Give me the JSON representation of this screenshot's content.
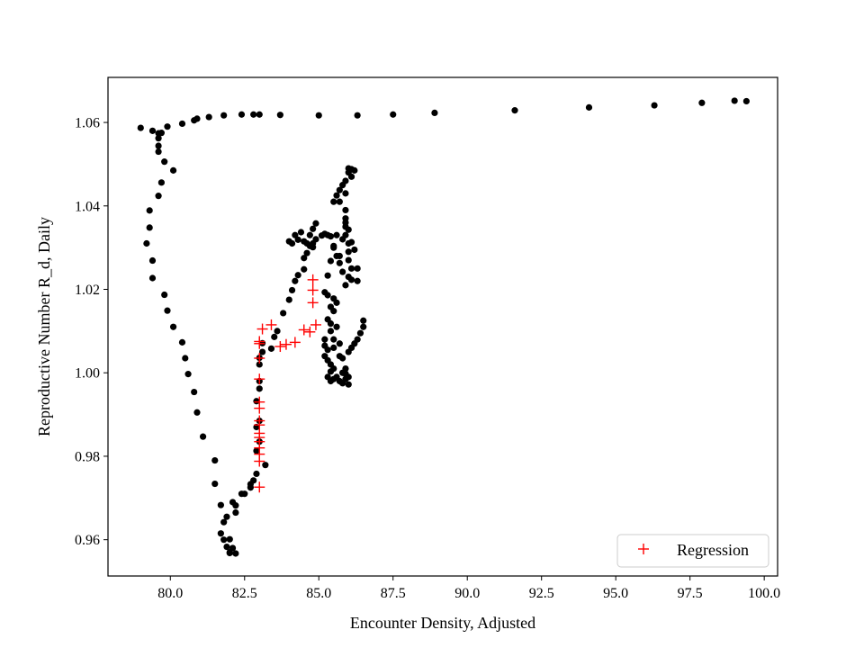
{
  "chart_data": {
    "type": "scatter",
    "title": "",
    "xlabel": "Encounter Density, Adjusted",
    "ylabel": "Reproductive Number R_d, Daily",
    "xlim": [
      77.9,
      100.45
    ],
    "ylim": [
      0.9513,
      1.0708
    ],
    "xticks": [
      "80.0",
      "82.5",
      "85.0",
      "87.5",
      "90.0",
      "92.5",
      "95.0",
      "97.5",
      "100.0"
    ],
    "xtick_values": [
      80.0,
      82.5,
      85.0,
      87.5,
      90.0,
      92.5,
      95.0,
      97.5,
      100.0
    ],
    "yticks": [
      "0.96",
      "0.98",
      "1.00",
      "1.02",
      "1.04",
      "1.06"
    ],
    "ytick_values": [
      0.96,
      0.98,
      1.0,
      1.02,
      1.04,
      1.06
    ],
    "grid": false,
    "legend": {
      "position": "lower-right",
      "entries": [
        "Regression"
      ]
    },
    "colors": {
      "observed": "#000000",
      "regression": "#ff0000",
      "axes": "#000000"
    },
    "series": [
      {
        "marker": "dot",
        "color": "#000000",
        "points": [
          [
            99.4,
            1.0651
          ],
          [
            99.0,
            1.0652
          ],
          [
            97.9,
            1.0647
          ],
          [
            96.3,
            1.0641
          ],
          [
            94.1,
            1.0636
          ],
          [
            91.6,
            1.0629
          ],
          [
            88.9,
            1.0623
          ],
          [
            87.5,
            1.0619
          ],
          [
            86.3,
            1.0617
          ],
          [
            85.0,
            1.0617
          ],
          [
            83.7,
            1.0618
          ],
          [
            83.0,
            1.0619
          ],
          [
            82.8,
            1.0619
          ],
          [
            82.4,
            1.0619
          ],
          [
            81.8,
            1.0617
          ],
          [
            81.3,
            1.0613
          ],
          [
            80.9,
            1.0609
          ],
          [
            80.8,
            1.0605
          ],
          [
            80.4,
            1.0597
          ],
          [
            79.0,
            1.0587
          ],
          [
            79.4,
            1.058
          ],
          [
            79.6,
            1.0574
          ],
          [
            79.7,
            1.0575
          ],
          [
            79.9,
            1.059
          ],
          [
            79.6,
            1.0562
          ],
          [
            79.6,
            1.0544
          ],
          [
            79.6,
            1.053
          ],
          [
            79.8,
            1.0506
          ],
          [
            80.1,
            1.0485
          ],
          [
            79.7,
            1.0456
          ],
          [
            79.6,
            1.0424
          ],
          [
            79.3,
            1.0389
          ],
          [
            79.3,
            1.0348
          ],
          [
            79.2,
            1.031
          ],
          [
            79.4,
            1.0269
          ],
          [
            79.4,
            1.0227
          ],
          [
            79.8,
            1.0187
          ],
          [
            79.9,
            1.0149
          ],
          [
            80.1,
            1.011
          ],
          [
            80.4,
            1.0073
          ],
          [
            80.5,
            1.0035
          ],
          [
            80.6,
            0.9997
          ],
          [
            80.8,
            0.9954
          ],
          [
            80.9,
            0.9905
          ],
          [
            81.1,
            0.9847
          ],
          [
            81.5,
            0.979
          ],
          [
            81.5,
            0.9734
          ],
          [
            81.7,
            0.9683
          ],
          [
            81.8,
            0.9642
          ],
          [
            81.9,
            0.9655
          ],
          [
            81.7,
            0.9615
          ],
          [
            81.8,
            0.96
          ],
          [
            81.9,
            0.9583
          ],
          [
            82.0,
            0.9601
          ],
          [
            82.0,
            0.957
          ],
          [
            82.1,
            0.958
          ],
          [
            82.2,
            0.9567
          ],
          [
            82.0,
            0.9568
          ],
          [
            82.2,
            0.9665
          ],
          [
            82.2,
            0.9682
          ],
          [
            82.1,
            0.969
          ],
          [
            82.4,
            0.971
          ],
          [
            82.5,
            0.971
          ],
          [
            82.7,
            0.9725
          ],
          [
            82.7,
            0.9733
          ],
          [
            82.8,
            0.9742
          ],
          [
            82.9,
            0.9758
          ],
          [
            83.2,
            0.9779
          ],
          [
            82.9,
            0.9813
          ],
          [
            83.0,
            0.9835
          ],
          [
            82.9,
            0.987
          ],
          [
            83.0,
            0.9885
          ],
          [
            82.9,
            0.9932
          ],
          [
            83.0,
            0.9962
          ],
          [
            83.0,
            0.998
          ],
          [
            83.0,
            1.002
          ],
          [
            83.0,
            1.0036
          ],
          [
            83.1,
            1.005
          ],
          [
            83.1,
            1.0071
          ],
          [
            83.4,
            1.0058
          ],
          [
            83.5,
            1.0086
          ],
          [
            83.6,
            1.01
          ],
          [
            83.8,
            1.0143
          ],
          [
            84.0,
            1.0175
          ],
          [
            84.1,
            1.0198
          ],
          [
            84.2,
            1.022
          ],
          [
            84.3,
            1.0234
          ],
          [
            84.5,
            1.0248
          ],
          [
            84.5,
            1.0275
          ],
          [
            84.6,
            1.0287
          ],
          [
            84.8,
            1.0301
          ],
          [
            84.0,
            1.0315
          ],
          [
            84.1,
            1.031
          ],
          [
            84.3,
            1.0319
          ],
          [
            84.2,
            1.033
          ],
          [
            84.4,
            1.0337
          ],
          [
            84.5,
            1.0315
          ],
          [
            84.6,
            1.031
          ],
          [
            84.7,
            1.0304
          ],
          [
            84.8,
            1.031
          ],
          [
            84.9,
            1.032
          ],
          [
            85.1,
            1.0329
          ],
          [
            85.2,
            1.0333
          ],
          [
            85.3,
            1.033
          ],
          [
            85.4,
            1.0327
          ],
          [
            85.5,
            1.0304
          ],
          [
            85.6,
            1.028
          ],
          [
            85.7,
            1.0263
          ],
          [
            85.8,
            1.0242
          ],
          [
            85.9,
            1.021
          ],
          [
            85.5,
            1.03
          ],
          [
            85.4,
            1.0268
          ],
          [
            85.3,
            1.0233
          ],
          [
            85.2,
            1.0193
          ],
          [
            85.3,
            1.0186
          ],
          [
            85.5,
            1.0178
          ],
          [
            85.6,
            1.0168
          ],
          [
            85.4,
            1.0158
          ],
          [
            85.5,
            1.0148
          ],
          [
            85.3,
            1.0128
          ],
          [
            85.4,
            1.0118
          ],
          [
            85.6,
            1.011
          ],
          [
            85.4,
            1.01
          ],
          [
            85.5,
            1.008
          ],
          [
            85.2,
            1.008
          ],
          [
            85.2,
            1.0065
          ],
          [
            85.3,
            1.0055
          ],
          [
            85.5,
            1.006
          ],
          [
            85.7,
            1.007
          ],
          [
            85.2,
            1.004
          ],
          [
            85.3,
            1.003
          ],
          [
            85.4,
            1.002
          ],
          [
            85.5,
            1.001
          ],
          [
            85.7,
            1.004
          ],
          [
            85.4,
            1.0003
          ],
          [
            85.3,
            0.999
          ],
          [
            85.4,
            0.998
          ],
          [
            85.5,
            0.9985
          ],
          [
            85.6,
            0.999
          ],
          [
            85.7,
            0.998
          ],
          [
            85.8,
            0.9975
          ],
          [
            86.0,
            0.9972
          ],
          [
            85.9,
            0.9985
          ],
          [
            86.0,
            0.999
          ],
          [
            85.9,
            0.9998
          ],
          [
            85.8,
            1.0
          ],
          [
            85.8,
            1.0035
          ],
          [
            85.9,
            1.001
          ],
          [
            86.0,
            1.005
          ],
          [
            86.1,
            1.006
          ],
          [
            86.2,
            1.007
          ],
          [
            86.3,
            1.008
          ],
          [
            86.4,
            1.0095
          ],
          [
            86.5,
            1.011
          ],
          [
            86.5,
            1.0125
          ],
          [
            86.3,
            1.022
          ],
          [
            86.1,
            1.0223
          ],
          [
            86.0,
            1.023
          ],
          [
            86.1,
            1.025
          ],
          [
            86.0,
            1.027
          ],
          [
            86.0,
            1.029
          ],
          [
            86.0,
            1.031
          ],
          [
            85.9,
            1.033
          ],
          [
            85.9,
            1.035
          ],
          [
            85.9,
            1.037
          ],
          [
            85.9,
            1.039
          ],
          [
            85.7,
            1.041
          ],
          [
            85.9,
            1.043
          ],
          [
            85.8,
            1.045
          ],
          [
            86.1,
            1.047
          ],
          [
            85.9,
            1.046
          ],
          [
            86.0,
            1.048
          ],
          [
            86.1,
            1.0488
          ],
          [
            86.0,
            1.049
          ],
          [
            86.2,
            1.0485
          ],
          [
            84.9,
            1.0358
          ],
          [
            84.8,
            1.0345
          ],
          [
            84.7,
            1.033
          ],
          [
            86.0,
            1.0343
          ],
          [
            86.1,
            1.0313
          ],
          [
            86.2,
            1.0295
          ],
          [
            86.3,
            1.025
          ],
          [
            85.5,
            1.041
          ],
          [
            85.6,
            1.0425
          ],
          [
            85.7,
            1.0438
          ],
          [
            85.9,
            1.036
          ],
          [
            85.6,
            1.033
          ],
          [
            85.8,
            1.032
          ],
          [
            85.7,
            1.028
          ]
        ]
      },
      {
        "name": "Regression",
        "marker": "plus",
        "color": "#ff0000",
        "points": [
          [
            83.0,
            0.9726
          ],
          [
            83.0,
            0.9788
          ],
          [
            83.0,
            0.9805
          ],
          [
            83.0,
            0.982
          ],
          [
            83.0,
            0.9835
          ],
          [
            83.0,
            0.9845
          ],
          [
            83.0,
            0.9855
          ],
          [
            83.0,
            0.9875
          ],
          [
            83.0,
            0.9885
          ],
          [
            83.0,
            0.9915
          ],
          [
            83.0,
            0.993
          ],
          [
            83.0,
            0.9985
          ],
          [
            83.0,
            1.0035
          ],
          [
            83.0,
            1.007
          ],
          [
            83.0,
            1.0075
          ],
          [
            83.1,
            1.0105
          ],
          [
            83.4,
            1.0115
          ],
          [
            83.7,
            1.0063
          ],
          [
            83.9,
            1.0068
          ],
          [
            84.2,
            1.0073
          ],
          [
            84.5,
            1.0103
          ],
          [
            84.7,
            1.0098
          ],
          [
            84.9,
            1.0115
          ],
          [
            84.8,
            1.0168
          ],
          [
            84.8,
            1.0198
          ],
          [
            84.8,
            1.0223
          ]
        ]
      }
    ]
  }
}
